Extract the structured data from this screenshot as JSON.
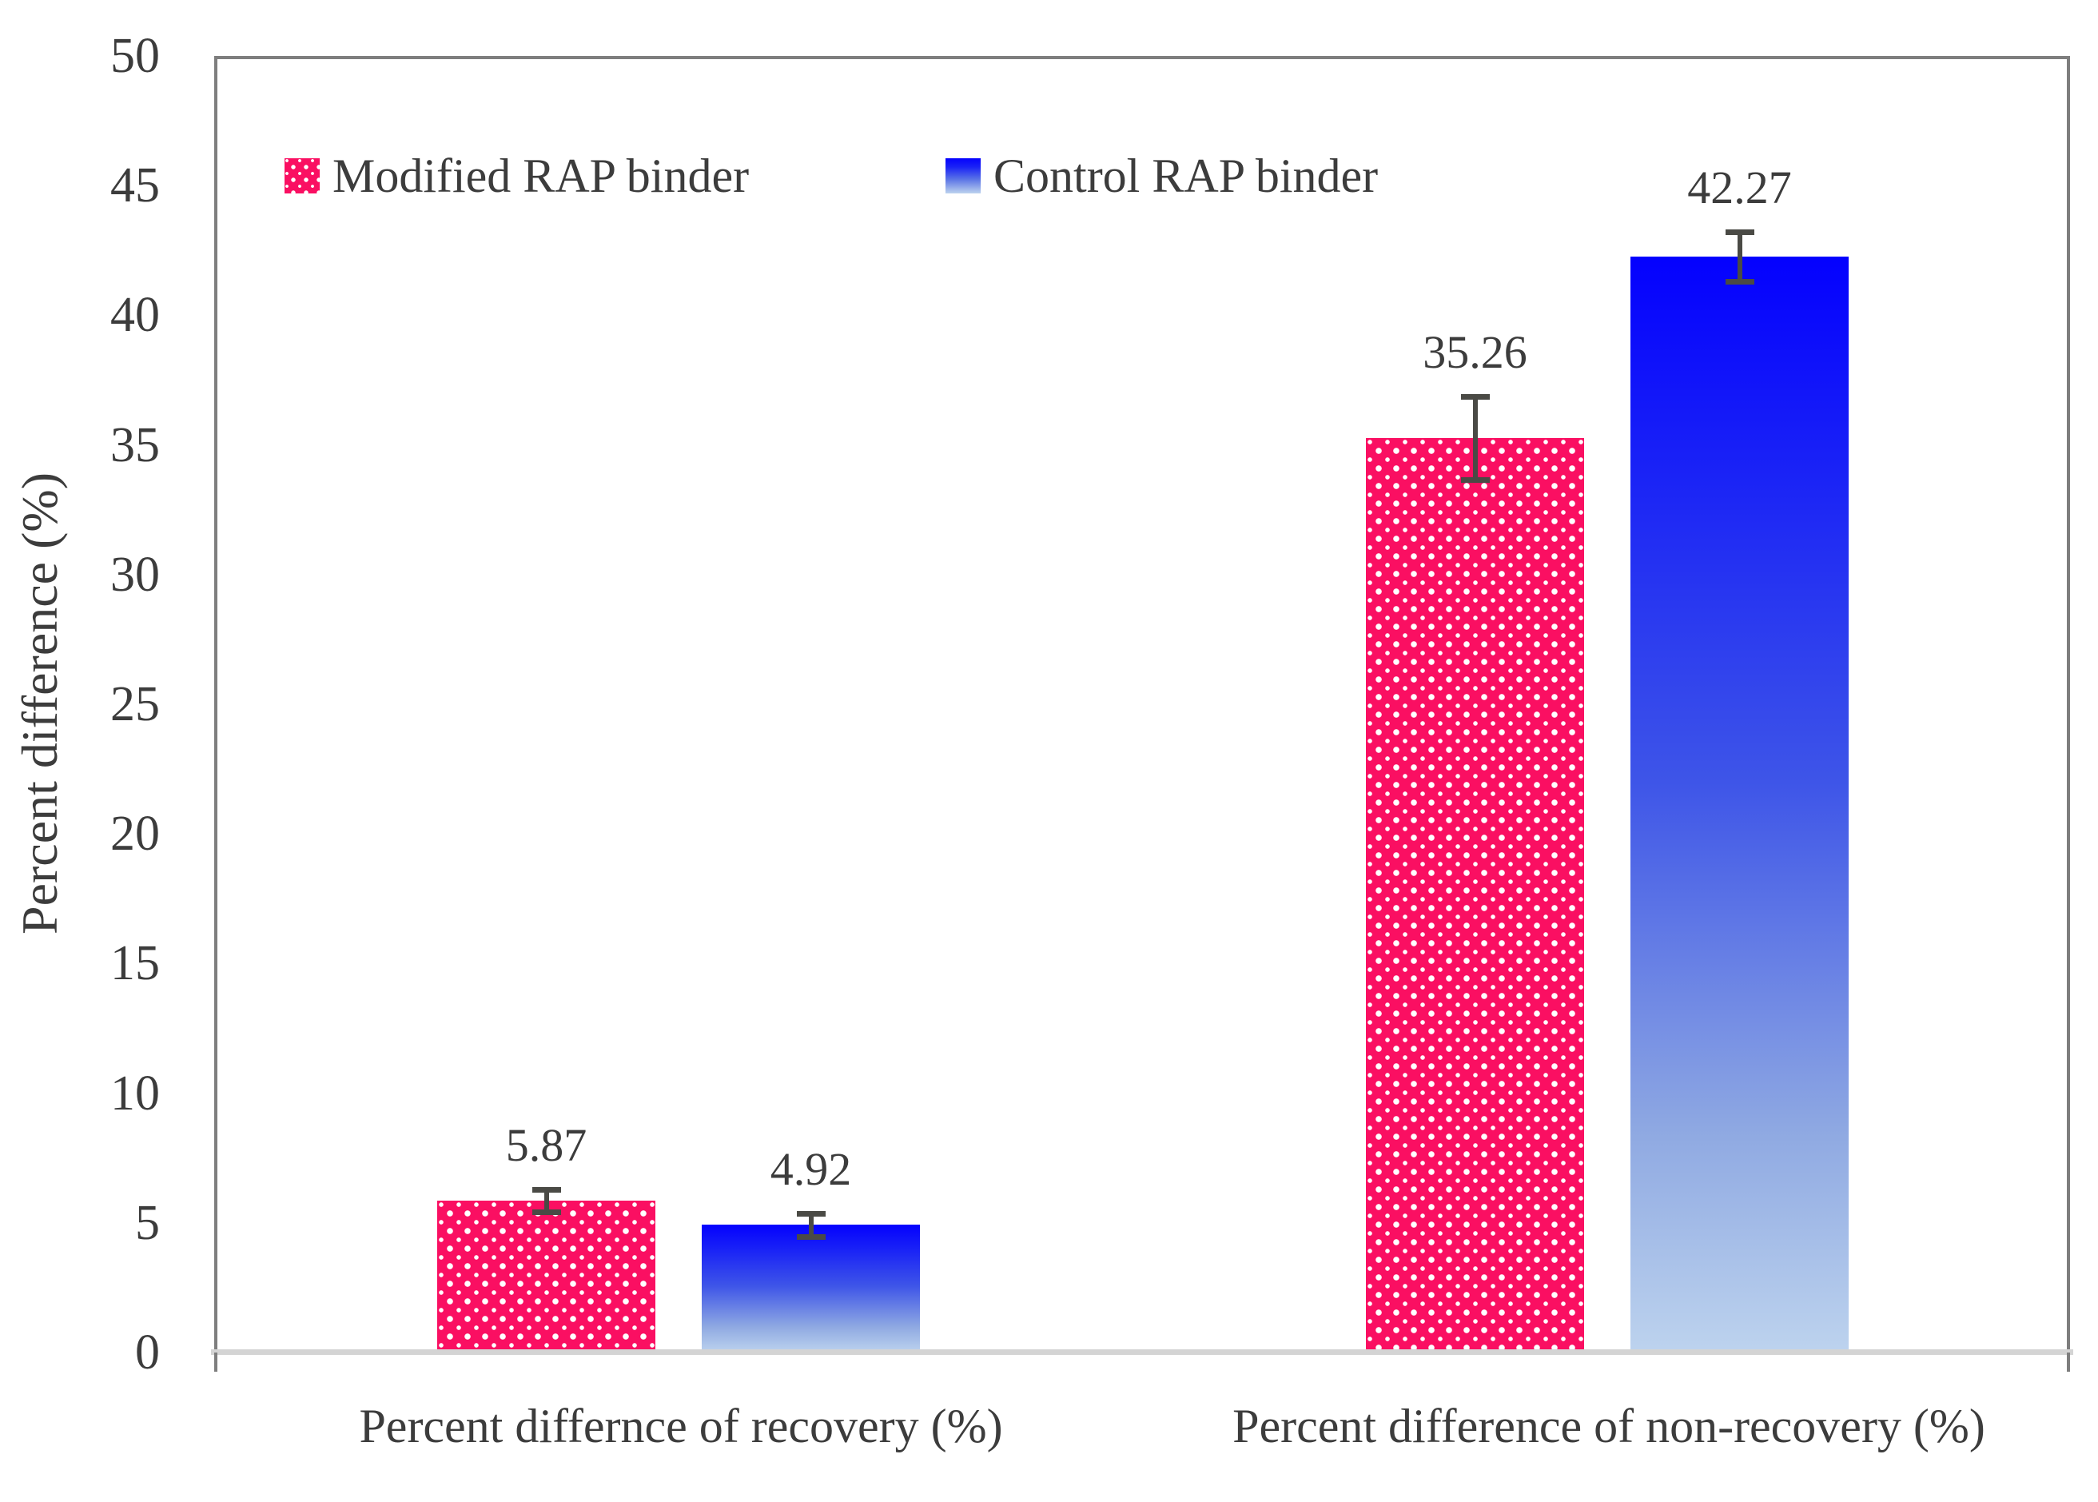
{
  "chart_data": {
    "type": "bar",
    "title": "",
    "xlabel": "",
    "ylabel": "Percent difference (%)",
    "ylim": [
      0,
      50
    ],
    "yticks": [
      0,
      5,
      10,
      15,
      20,
      25,
      30,
      35,
      40,
      45,
      50
    ],
    "grid": false,
    "legend_position": "top-inside",
    "categories": [
      "Percent differnce of recovery (%)",
      "Percent difference of non-recovery (%)"
    ],
    "series": [
      {
        "name": "Modified RAP binder",
        "style": "pink-dotted",
        "values": [
          5.87,
          35.26
        ],
        "value_labels": [
          "5.87",
          "35.26"
        ],
        "errors": [
          0.43,
          1.6
        ]
      },
      {
        "name": "Control RAP binder",
        "style": "blue-gradient",
        "values": [
          4.92,
          42.27
        ],
        "value_labels": [
          "4.92",
          "42.27"
        ],
        "errors": [
          0.44,
          0.95
        ]
      }
    ]
  },
  "colors": {
    "pink": "#FA0F62",
    "blue_top": "#0401FE",
    "blue_bottom": "#BDD3EE",
    "error_bar": "#4A4A45",
    "frame": "#7E7E7E",
    "baseline": "#D4D4D4",
    "text": "#3C3C3C"
  }
}
